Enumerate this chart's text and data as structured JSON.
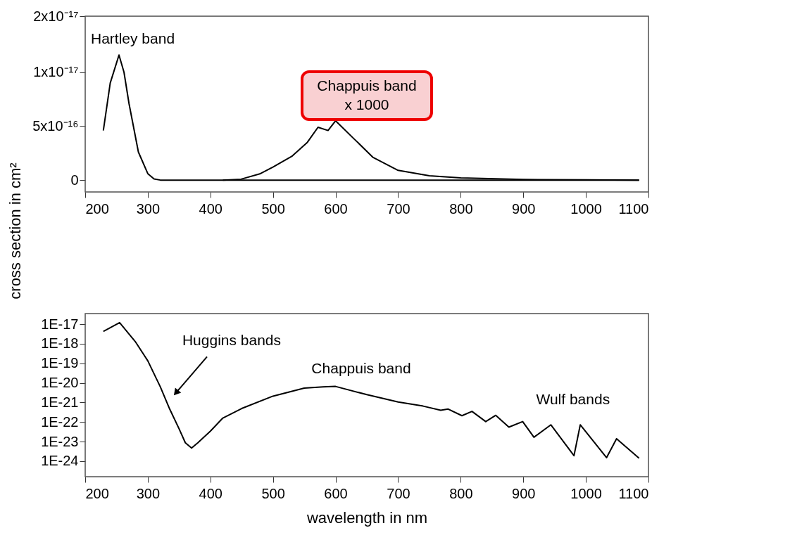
{
  "chart_data": [
    {
      "type": "line",
      "ylabel": "cross section in cm²",
      "xlim": [
        200,
        1100
      ],
      "xticks": [
        200,
        300,
        400,
        500,
        600,
        700,
        800,
        900,
        1000,
        1100
      ],
      "ylim": [
        -1.1e-18,
        1.52e-17
      ],
      "yticks": [
        {
          "value": 0,
          "label": "0"
        },
        {
          "value": 5e-18,
          "label": "5x10⁻¹⁶"
        },
        {
          "value": 1e-17,
          "label": "1x10⁻¹⁷"
        },
        {
          "value": 1.52e-17,
          "label": "2x10⁻¹⁷"
        }
      ],
      "grid": false,
      "series": [
        {
          "color": "#000000",
          "x": [
            229,
            240,
            254,
            262,
            270,
            285,
            300,
            310,
            320,
            420,
            600,
            800,
            1085
          ],
          "values": [
            4.6e-18,
            9e-18,
            1.16e-17,
            1e-17,
            7.1e-18,
            2.6e-18,
            6e-19,
            1e-19,
            0,
            0,
            0,
            0,
            0
          ]
        },
        {
          "color": "#000000",
          "x": [
            420,
            449,
            480,
            500,
            530,
            555,
            572,
            588,
            600,
            630,
            660,
            700,
            750,
            800,
            900,
            1000,
            1085
          ],
          "values": [
            0,
            8e-20,
            6e-19,
            1.2e-18,
            2.2e-18,
            3.5e-18,
            4.9e-18,
            4.6e-18,
            5.5e-18,
            3.8e-18,
            2.1e-18,
            9e-19,
            4e-19,
            2e-19,
            5e-20,
            2e-20,
            0
          ]
        }
      ],
      "annotations": [
        "Hartley band",
        "Chappuis band\nx 1000"
      ]
    },
    {
      "type": "line",
      "xlabel": "wavelength in nm",
      "xlim": [
        200,
        1100
      ],
      "xticks": [
        200,
        300,
        400,
        500,
        600,
        700,
        800,
        900,
        1000,
        1100
      ],
      "log": "y",
      "ylim": [
        1.6e-25,
        3.5e-17
      ],
      "yticks": [
        {
          "value": 1e-17,
          "label": "1E-17"
        },
        {
          "value": 1e-18,
          "label": "1E-18"
        },
        {
          "value": 1e-19,
          "label": "1E-19"
        },
        {
          "value": 1e-20,
          "label": "1E-20"
        },
        {
          "value": 1e-21,
          "label": "1E-21"
        },
        {
          "value": 1e-22,
          "label": "1E-22"
        },
        {
          "value": 1e-23,
          "label": "1E-23"
        },
        {
          "value": 1e-24,
          "label": "1E-24"
        }
      ],
      "grid": false,
      "series": [
        {
          "color": "#000000",
          "x": [
            229,
            255,
            280,
            300,
            320,
            335,
            350,
            360,
            370,
            380,
            400,
            420,
            450,
            500,
            550,
            580,
            600,
            650,
            700,
            740,
            768,
            780,
            802,
            818,
            840,
            856,
            877,
            899,
            917,
            944,
            981,
            991,
            1033,
            1049,
            1085
          ],
          "values": [
            4.3e-18,
            1.2e-17,
            1.3e-18,
            1.35e-19,
            6.3e-21,
            4.6e-22,
            4.5e-23,
            8.7e-24,
            4.7e-24,
            8.7e-24,
            3.4e-23,
            1.6e-22,
            4.9e-22,
            2.1e-21,
            5.4e-21,
            6.3e-21,
            6.6e-21,
            2.5e-21,
            1.05e-21,
            6.5e-22,
            4e-22,
            4.6e-22,
            2.1e-22,
            3.5e-22,
            1.05e-22,
            2.2e-22,
            5.5e-23,
            1.05e-22,
            1.66e-23,
            7.2e-23,
            1.9e-24,
            7.2e-23,
            1.5e-24,
            1.4e-23,
            1.4e-24
          ]
        }
      ],
      "annotations": [
        "Huggins bands",
        "Chappuis band",
        "Wulf bands"
      ]
    }
  ]
}
